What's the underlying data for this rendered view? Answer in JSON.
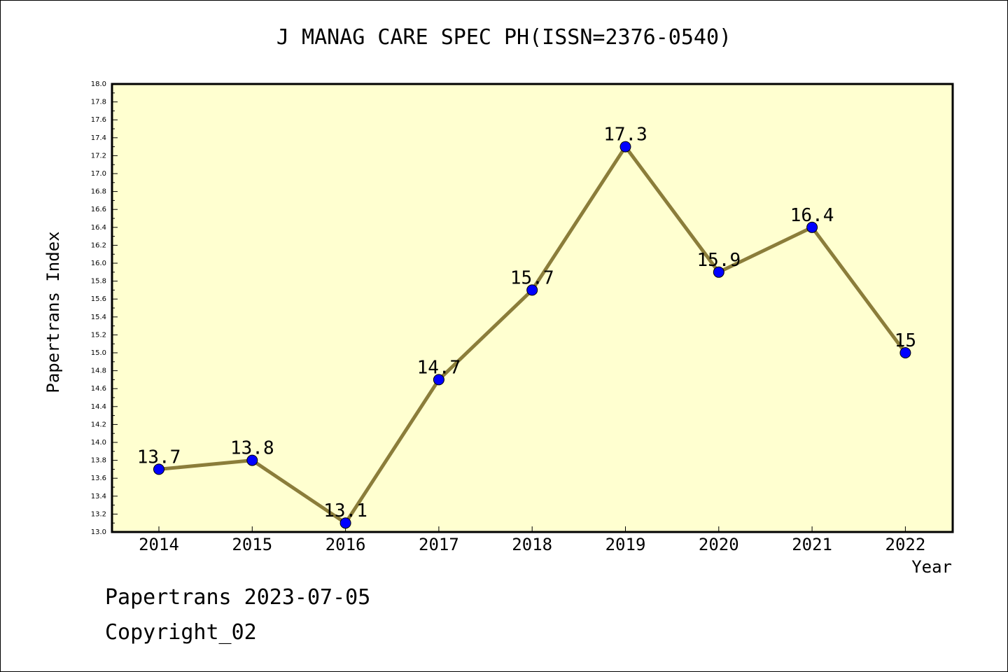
{
  "chart_data": {
    "type": "line",
    "title": "J MANAG CARE SPEC PH(ISSN=2376-0540)",
    "xlabel": "Year",
    "ylabel": "Papertrans Index",
    "categories": [
      "2014",
      "2015",
      "2016",
      "2017",
      "2018",
      "2019",
      "2020",
      "2021",
      "2022"
    ],
    "series": [
      {
        "values": [
          13.7,
          13.8,
          13.1,
          14.7,
          15.7,
          17.3,
          15.9,
          16.4,
          15
        ],
        "data_labels": [
          "13.7",
          "13.8",
          "13.1",
          "14.7",
          "15.7",
          "17.3",
          "15.9",
          "16.4",
          "15"
        ]
      }
    ],
    "ylim": [
      13.0,
      18.0
    ],
    "ytick_labels": [
      "13.0",
      "13.2",
      "13.4",
      "13.6",
      "13.8",
      "14.0",
      "14.2",
      "14.4",
      "14.6",
      "14.8",
      "15.0",
      "15.2",
      "15.4",
      "15.6",
      "15.8",
      "16.0",
      "16.2",
      "16.4",
      "16.6",
      "16.8",
      "17.0",
      "17.2",
      "17.4",
      "17.6",
      "17.8",
      "18.0"
    ],
    "grid": false,
    "legend": "none"
  },
  "colors": {
    "plot_background": "#ffffd0",
    "line": "#8b7d3a",
    "marker": "#0000ff",
    "axis": "#000000"
  },
  "footer": {
    "date_text": "Papertrans 2023-07-05",
    "copyright_text": "Copyright_02"
  }
}
